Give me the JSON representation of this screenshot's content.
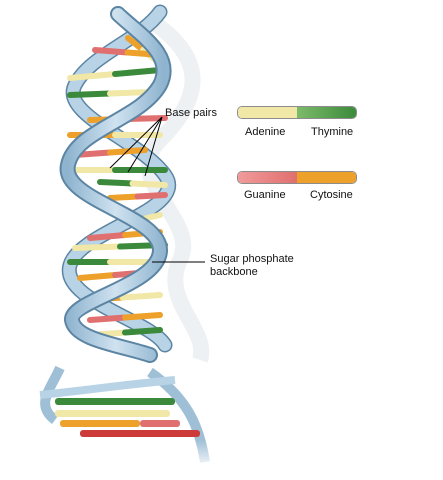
{
  "labels": {
    "base_pairs": "Base pairs",
    "backbone": "Sugar phosphate\nbackbone"
  },
  "legend": {
    "pair1": {
      "left": "Adenine",
      "right": "Thymine"
    },
    "pair2": {
      "left": "Guanine",
      "right": "Cytosine"
    }
  },
  "colors": {
    "adenine": "#f1e7a6",
    "thymine": "#3b8a3b",
    "guanine": "#e06f6f",
    "cytosine": "#eda02a",
    "backbone_fill": "#b8d3e6",
    "backbone_stroke": "#5c85a3"
  }
}
